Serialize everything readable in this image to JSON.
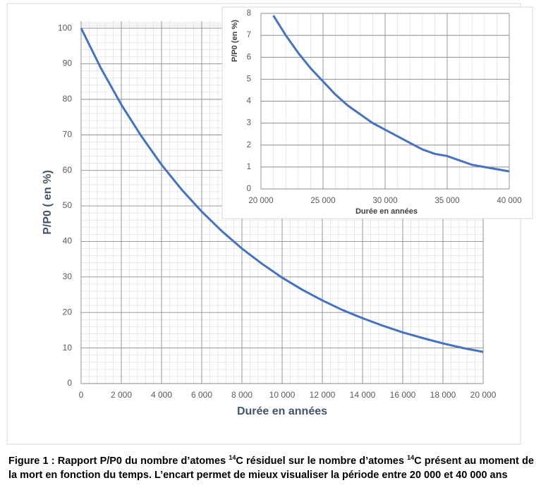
{
  "chart_data": [
    {
      "type": "line",
      "x_label": "Durée en années",
      "y_label": "P/P0 ( en %)",
      "x": [
        0,
        1000,
        2000,
        3000,
        4000,
        5000,
        6000,
        7000,
        8000,
        9000,
        10000,
        11000,
        12000,
        13000,
        14000,
        15000,
        16000,
        17000,
        18000,
        19000,
        20000
      ],
      "values": [
        100,
        88.6,
        78.5,
        69.6,
        61.6,
        54.6,
        48.4,
        42.9,
        38.0,
        33.7,
        29.8,
        26.4,
        23.4,
        20.7,
        18.4,
        16.3,
        14.4,
        12.8,
        11.3,
        10.0,
        8.9
      ],
      "color": "#4472c4",
      "xlim": [
        0,
        20000
      ],
      "xticks": [
        0,
        {
          "value": 2000,
          "label": "2 000"
        },
        {
          "value": 4000,
          "label": "4 000"
        },
        {
          "value": 6000,
          "label": "6 000"
        },
        {
          "value": 8000,
          "label": "8 000"
        },
        {
          "value": 10000,
          "label": "10 000"
        },
        {
          "value": 12000,
          "label": "12 000"
        },
        {
          "value": 14000,
          "label": "14 000"
        },
        {
          "value": 16000,
          "label": "16 000"
        },
        {
          "value": 18000,
          "label": "18 000"
        },
        {
          "value": 20000,
          "label": "20 000"
        }
      ],
      "ylim": [
        0,
        102
      ],
      "yticks": [
        0,
        10,
        20,
        30,
        40,
        50,
        60,
        70,
        80,
        90,
        100
      ],
      "grid": true,
      "minor_grid": {
        "x": 5,
        "y": 5
      }
    },
    {
      "type": "line",
      "x_label": "Durée en années",
      "y_label": "P/P0 (en %)",
      "x": [
        21000,
        22000,
        23000,
        24000,
        25000,
        26000,
        27000,
        28000,
        29000,
        30000,
        31000,
        32000,
        33000,
        34000,
        35000,
        36000,
        37000,
        38000,
        39000,
        40000
      ],
      "values": [
        7.9,
        7.0,
        6.2,
        5.5,
        4.9,
        4.3,
        3.8,
        3.4,
        3.0,
        2.7,
        2.4,
        2.1,
        1.8,
        1.6,
        1.5,
        1.3,
        1.1,
        1.0,
        0.9,
        0.8
      ],
      "color": "#4472c4",
      "xlim": [
        20000,
        40000
      ],
      "xticks": [
        {
          "value": 20000,
          "label": "20 000"
        },
        {
          "value": 25000,
          "label": "25 000"
        },
        {
          "value": 30000,
          "label": "30 000"
        },
        {
          "value": 35000,
          "label": "35 000"
        },
        {
          "value": 40000,
          "label": "40 000"
        }
      ],
      "ylim": [
        0,
        8
      ],
      "yticks": [
        0,
        1,
        2,
        3,
        4,
        5,
        6,
        7,
        8
      ],
      "grid": true,
      "minor_grid": {
        "x": 5,
        "y": 1
      }
    }
  ],
  "caption": [
    "Figure 1 : Rapport P/P0 du nombre d’atomes ",
    "14",
    "C résiduel sur le nombre d’atomes ",
    "14",
    "C présent au moment de la mort en fonction du temps. L’encart permet de mieux visualiser la période entre 20 000 et 40 000 ans"
  ]
}
